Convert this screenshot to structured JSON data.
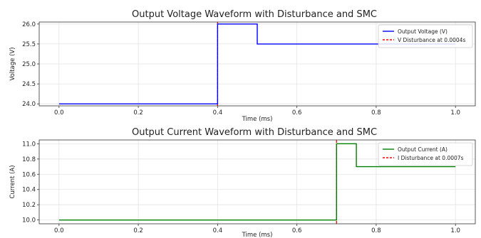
{
  "chart_data": [
    {
      "type": "line",
      "title": "Output Voltage Waveform with Disturbance and SMC",
      "xlabel": "Time (ms)",
      "ylabel": "Voltage (V)",
      "xlim": [
        -0.05,
        1.05
      ],
      "ylim": [
        23.95,
        26.05
      ],
      "xticks": [
        "0.0",
        "0.2",
        "0.4",
        "0.6",
        "0.8",
        "1.0"
      ],
      "yticks": [
        "24.0",
        "24.5",
        "25.0",
        "25.5",
        "26.0"
      ],
      "grid": true,
      "legend_position": "top-right",
      "series": [
        {
          "name": "Output Voltage (V)",
          "color": "#0000ff",
          "style": "solid",
          "x": [
            0.0,
            0.4,
            0.4,
            0.5,
            0.5,
            1.0
          ],
          "y": [
            24.0,
            24.0,
            26.0,
            26.0,
            25.5,
            25.5
          ]
        }
      ],
      "vlines": [
        {
          "name": "V Disturbance at 0.0004s",
          "x": 0.4,
          "color": "#ff0000",
          "style": "dashed"
        }
      ]
    },
    {
      "type": "line",
      "title": "Output Current Waveform with Disturbance and SMC",
      "xlabel": "Time (ms)",
      "ylabel": "Current (A)",
      "xlim": [
        -0.05,
        1.05
      ],
      "ylim": [
        9.95,
        11.05
      ],
      "xticks": [
        "0.0",
        "0.2",
        "0.4",
        "0.6",
        "0.8",
        "1.0"
      ],
      "yticks": [
        "10.0",
        "10.2",
        "10.4",
        "10.6",
        "10.8",
        "11.0"
      ],
      "grid": true,
      "legend_position": "top-right",
      "series": [
        {
          "name": "Output Current (A)",
          "color": "#008000",
          "style": "solid",
          "x": [
            0.0,
            0.7,
            0.7,
            0.75,
            0.75,
            1.0
          ],
          "y": [
            10.0,
            10.0,
            11.0,
            11.0,
            10.7,
            10.7
          ]
        }
      ],
      "vlines": [
        {
          "name": "I Disturbance at 0.0007s",
          "x": 0.7,
          "color": "#ff0000",
          "style": "dashed"
        }
      ]
    }
  ]
}
